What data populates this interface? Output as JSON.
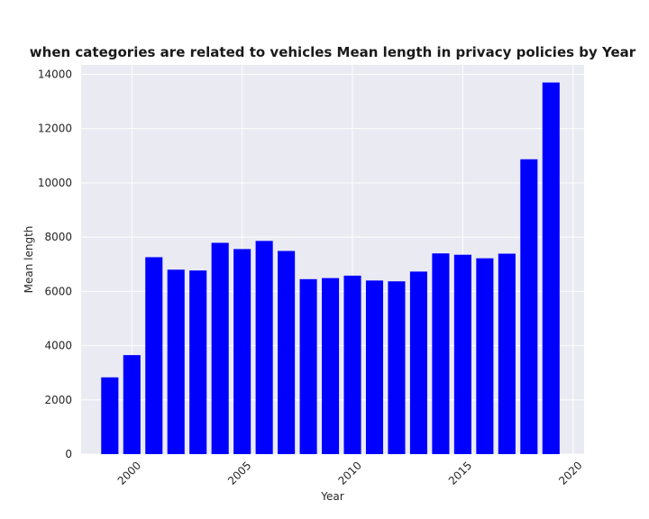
{
  "chart_data": {
    "type": "bar",
    "title": "when categories are related to vehicles Mean length in privacy policies by Year",
    "xlabel": "Year",
    "ylabel": "Mean length",
    "x": [
      1999,
      2000,
      2001,
      2002,
      2003,
      2004,
      2005,
      2006,
      2007,
      2008,
      2009,
      2010,
      2011,
      2012,
      2013,
      2014,
      2015,
      2016,
      2017,
      2018,
      2019
    ],
    "values": [
      2830,
      3650,
      7260,
      6800,
      6770,
      7790,
      7560,
      7860,
      7490,
      6450,
      6490,
      6580,
      6400,
      6370,
      6730,
      7400,
      7350,
      7220,
      7390,
      10870,
      13700
    ],
    "xlim": [
      1997.7,
      2020.5
    ],
    "ylim": [
      0,
      14350
    ],
    "xticks": [
      2000,
      2005,
      2010,
      2015,
      2020
    ],
    "yticks": [
      0,
      2000,
      4000,
      6000,
      8000,
      10000,
      12000,
      14000
    ],
    "bar_color": "#0000ff",
    "background_color": "#eaeaf2",
    "grid_color": "#ffffff",
    "grid": true
  }
}
